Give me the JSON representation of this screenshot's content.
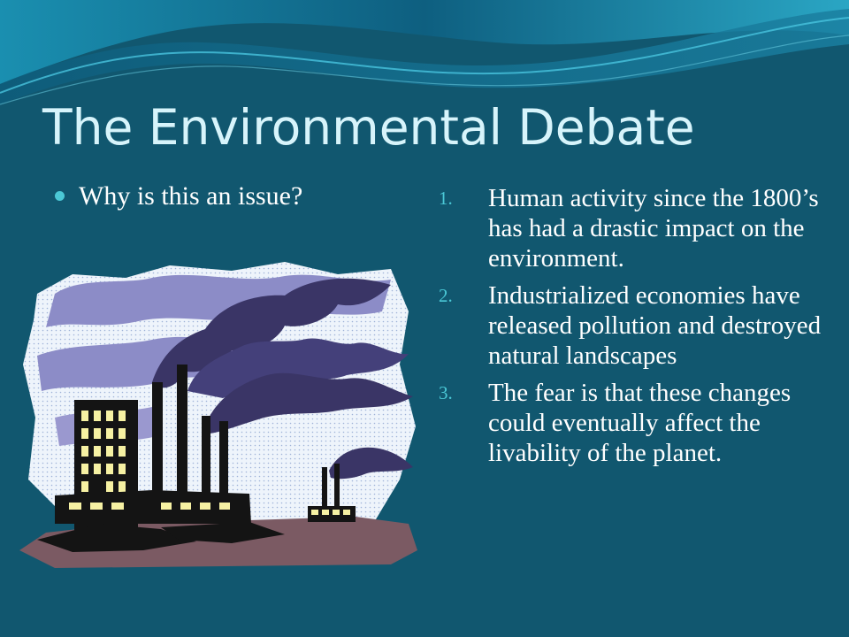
{
  "slide": {
    "title": "The Environmental Debate",
    "bullet": "Why is this an issue?",
    "numbered_items": [
      {
        "number": "1.",
        "text": "Human activity since the 1800’s has had a drastic impact on the environment."
      },
      {
        "number": "2.",
        "text": "Industrialized economies have released pollution and destroyed natural landscapes"
      },
      {
        "number": "3.",
        "text": "The fear is that these changes could eventually affect the livability of the planet."
      }
    ]
  },
  "colors": {
    "background": "#11576f",
    "title": "#d7f4fb",
    "accent": "#4bc8d6",
    "body_text": "#ffffff",
    "smoke": "#3a3566",
    "sky_clouds": "#8c8cc7",
    "window_light": "#f6f1a3",
    "ground": "#7b5a63"
  },
  "illustration": {
    "icon": "factory-pollution-icon"
  }
}
